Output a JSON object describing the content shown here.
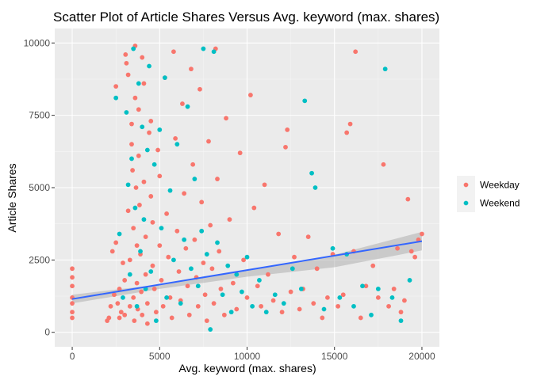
{
  "chart_data": {
    "type": "scatter",
    "title": "Scatter Plot of Article Shares Versus Avg. keyword (max. shares)",
    "xlabel": "Avg. keyword (max. shares)",
    "ylabel": "Article Shares",
    "xlim": [
      -1000,
      21000
    ],
    "ylim": [
      -500,
      10500
    ],
    "x_ticks": [
      0,
      5000,
      10000,
      15000,
      20000
    ],
    "x_tick_labels": [
      "0",
      "5000",
      "10000",
      "15000",
      "20000"
    ],
    "y_ticks": [
      0,
      2500,
      5000,
      7500,
      10000
    ],
    "y_tick_labels": [
      "0",
      "2500",
      "5000",
      "7500",
      "10000"
    ],
    "grid": true,
    "legend_position": "right",
    "series": [
      {
        "name": "Weekday",
        "color": "#F8766D",
        "points": [
          [
            0,
            2200
          ],
          [
            0,
            1900
          ],
          [
            0,
            1600
          ],
          [
            0,
            1200
          ],
          [
            0,
            700
          ],
          [
            0,
            500
          ],
          [
            0,
            1000
          ],
          [
            2000,
            400
          ],
          [
            2100,
            500
          ],
          [
            2200,
            900
          ],
          [
            2300,
            2800
          ],
          [
            2400,
            1300
          ],
          [
            2500,
            8500
          ],
          [
            2500,
            3100
          ],
          [
            2600,
            1000
          ],
          [
            2700,
            1500
          ],
          [
            2700,
            500
          ],
          [
            2800,
            700
          ],
          [
            2900,
            2400
          ],
          [
            3000,
            1800
          ],
          [
            3000,
            600
          ],
          [
            3050,
            9600
          ],
          [
            3100,
            9300
          ],
          [
            3200,
            8900
          ],
          [
            3200,
            4200
          ],
          [
            3300,
            2500
          ],
          [
            3300,
            900
          ],
          [
            3400,
            7200
          ],
          [
            3400,
            6500
          ],
          [
            3450,
            5600
          ],
          [
            3500,
            3600
          ],
          [
            3500,
            1200
          ],
          [
            3550,
            400
          ],
          [
            3600,
            8100
          ],
          [
            3600,
            9900
          ],
          [
            3650,
            5000
          ],
          [
            3700,
            3000
          ],
          [
            3700,
            1700
          ],
          [
            3750,
            800
          ],
          [
            3800,
            7700
          ],
          [
            3800,
            6100
          ],
          [
            3850,
            4400
          ],
          [
            3900,
            2700
          ],
          [
            3950,
            1400
          ],
          [
            4000,
            600
          ],
          [
            4000,
            9500
          ],
          [
            4100,
            8600
          ],
          [
            4100,
            5200
          ],
          [
            4200,
            3300
          ],
          [
            4200,
            2000
          ],
          [
            4300,
            1000
          ],
          [
            4300,
            300
          ],
          [
            4400,
            6900
          ],
          [
            4500,
            7300
          ],
          [
            4500,
            4700
          ],
          [
            4600,
            3800
          ],
          [
            4600,
            2300
          ],
          [
            4700,
            1500
          ],
          [
            4800,
            700
          ],
          [
            4900,
            6300
          ],
          [
            5000,
            5400
          ],
          [
            5000,
            3000
          ],
          [
            5100,
            1800
          ],
          [
            5200,
            900
          ],
          [
            5300,
            8800
          ],
          [
            5400,
            4100
          ],
          [
            5500,
            2600
          ],
          [
            5600,
            1200
          ],
          [
            5700,
            500
          ],
          [
            5800,
            9700
          ],
          [
            5900,
            6700
          ],
          [
            6000,
            3500
          ],
          [
            6100,
            2100
          ],
          [
            6200,
            1100
          ],
          [
            6300,
            7900
          ],
          [
            6400,
            4800
          ],
          [
            6500,
            2900
          ],
          [
            6600,
            1600
          ],
          [
            6700,
            600
          ],
          [
            6800,
            9100
          ],
          [
            6900,
            5800
          ],
          [
            7000,
            3200
          ],
          [
            7100,
            1900
          ],
          [
            7200,
            900
          ],
          [
            7300,
            8400
          ],
          [
            7400,
            4500
          ],
          [
            7500,
            2400
          ],
          [
            7600,
            1300
          ],
          [
            7700,
            400
          ],
          [
            7800,
            6600
          ],
          [
            7900,
            3700
          ],
          [
            8000,
            2200
          ],
          [
            8100,
            1000
          ],
          [
            8200,
            9800
          ],
          [
            8300,
            5300
          ],
          [
            8400,
            2800
          ],
          [
            8500,
            1500
          ],
          [
            8700,
            600
          ],
          [
            8800,
            7400
          ],
          [
            9000,
            3900
          ],
          [
            9200,
            1700
          ],
          [
            9400,
            800
          ],
          [
            9600,
            6200
          ],
          [
            9800,
            2500
          ],
          [
            10000,
            1200
          ],
          [
            10200,
            8200
          ],
          [
            10400,
            4300
          ],
          [
            10600,
            1600
          ],
          [
            10800,
            900
          ],
          [
            11000,
            5100
          ],
          [
            11200,
            2000
          ],
          [
            11500,
            1100
          ],
          [
            11800,
            3400
          ],
          [
            12000,
            700
          ],
          [
            12200,
            6400
          ],
          [
            12300,
            7000
          ],
          [
            12500,
            1400
          ],
          [
            12700,
            2600
          ],
          [
            13000,
            800
          ],
          [
            13200,
            1500
          ],
          [
            13500,
            3300
          ],
          [
            13800,
            1000
          ],
          [
            14000,
            2200
          ],
          [
            14300,
            500
          ],
          [
            14600,
            1200
          ],
          [
            14900,
            2700
          ],
          [
            15200,
            900
          ],
          [
            15500,
            1300
          ],
          [
            15700,
            6900
          ],
          [
            15900,
            7200
          ],
          [
            16100,
            2800
          ],
          [
            16200,
            9700
          ],
          [
            16500,
            500
          ],
          [
            16800,
            1600
          ],
          [
            17200,
            2300
          ],
          [
            17500,
            1200
          ],
          [
            17800,
            5800
          ],
          [
            18100,
            900
          ],
          [
            18400,
            1500
          ],
          [
            18600,
            2900
          ],
          [
            18800,
            700
          ],
          [
            19000,
            1100
          ],
          [
            19200,
            4600
          ],
          [
            19400,
            2800
          ],
          [
            19600,
            2600
          ],
          [
            19800,
            3200
          ],
          [
            20000,
            3400
          ]
        ]
      },
      {
        "name": "Weekend",
        "color": "#00BFC4",
        "points": [
          [
            2500,
            8100
          ],
          [
            2700,
            3400
          ],
          [
            2900,
            1200
          ],
          [
            3100,
            7600
          ],
          [
            3200,
            5100
          ],
          [
            3300,
            2000
          ],
          [
            3400,
            6000
          ],
          [
            3500,
            9800
          ],
          [
            3600,
            4300
          ],
          [
            3700,
            900
          ],
          [
            3800,
            8600
          ],
          [
            3900,
            2800
          ],
          [
            4000,
            7100
          ],
          [
            4100,
            3900
          ],
          [
            4200,
            1500
          ],
          [
            4300,
            6300
          ],
          [
            4400,
            9200
          ],
          [
            4500,
            2100
          ],
          [
            4700,
            5800
          ],
          [
            4800,
            400
          ],
          [
            5000,
            7000
          ],
          [
            5100,
            3600
          ],
          [
            5300,
            8800
          ],
          [
            5400,
            1200
          ],
          [
            5600,
            4900
          ],
          [
            5800,
            2500
          ],
          [
            6000,
            6500
          ],
          [
            6200,
            1000
          ],
          [
            6400,
            3200
          ],
          [
            6600,
            7800
          ],
          [
            6800,
            2200
          ],
          [
            7000,
            5300
          ],
          [
            7200,
            1600
          ],
          [
            7400,
            3500
          ],
          [
            7500,
            9800
          ],
          [
            7700,
            2700
          ],
          [
            7900,
            100
          ],
          [
            8100,
            9700
          ],
          [
            8300,
            3100
          ],
          [
            8600,
            1300
          ],
          [
            8900,
            2300
          ],
          [
            9100,
            700
          ],
          [
            9400,
            2000
          ],
          [
            9700,
            1400
          ],
          [
            10000,
            2600
          ],
          [
            10300,
            900
          ],
          [
            10700,
            1800
          ],
          [
            11100,
            700
          ],
          [
            11600,
            1300
          ],
          [
            12100,
            1000
          ],
          [
            12600,
            2200
          ],
          [
            13100,
            1500
          ],
          [
            13300,
            8000
          ],
          [
            13700,
            5500
          ],
          [
            13900,
            5000
          ],
          [
            14400,
            800
          ],
          [
            14900,
            2900
          ],
          [
            15300,
            1200
          ],
          [
            15700,
            2700
          ],
          [
            16100,
            900
          ],
          [
            16600,
            1600
          ],
          [
            17100,
            600
          ],
          [
            17500,
            1500
          ],
          [
            17900,
            9100
          ],
          [
            18300,
            1200
          ],
          [
            18800,
            400
          ],
          [
            19300,
            1800
          ]
        ]
      }
    ],
    "trend_line": {
      "color": "#3366FF",
      "x": [
        0,
        20000
      ],
      "y": [
        1150,
        3150
      ]
    },
    "confidence_band": {
      "color": "#999999",
      "x": [
        0,
        5000,
        10000,
        15000,
        20000
      ],
      "y_low": [
        1000,
        1500,
        1920,
        2250,
        2830
      ],
      "y_high": [
        1300,
        1650,
        2120,
        2680,
        3470
      ]
    }
  },
  "colors": {
    "panel_background": "#EBEBEB",
    "grid_major": "#FFFFFF",
    "grid_minor": "#F5F5F5",
    "legend_key_background": "#F2F2F2"
  }
}
